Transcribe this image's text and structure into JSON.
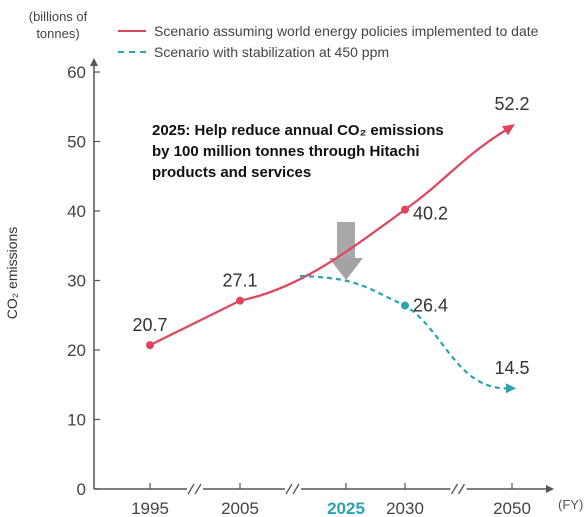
{
  "chart_data": {
    "type": "line",
    "unit_label": "(billions of\ntonnes)",
    "ylabel": "CO₂ emissions",
    "xlabel": "(FY)",
    "ylim": [
      0,
      60
    ],
    "yticks": [
      0,
      10,
      20,
      30,
      40,
      50,
      60
    ],
    "x_ticks": [
      {
        "year": 1995,
        "label": "1995",
        "highlight": false
      },
      {
        "year": 2005,
        "label": "2005",
        "highlight": false
      },
      {
        "year": 2025,
        "label": "2025",
        "highlight": true
      },
      {
        "year": 2030,
        "label": "2030",
        "highlight": false
      },
      {
        "year": 2050,
        "label": "2050",
        "highlight": false
      }
    ],
    "series": [
      {
        "name": "Scenario assuming world energy policies implemented to date",
        "style": "solid",
        "color": "#e0445e",
        "points": [
          {
            "year": 1995,
            "value": 20.7,
            "label": "20.7"
          },
          {
            "year": 2005,
            "value": 27.1,
            "label": "27.1"
          },
          {
            "year": 2030,
            "value": 40.2,
            "label": "40.2"
          },
          {
            "year": 2050,
            "value": 52.2,
            "label": "52.2"
          }
        ]
      },
      {
        "name": "Scenario with stabilization at 450 ppm",
        "style": "dashed",
        "color": "#2aa3ad",
        "points": [
          {
            "year": 2030,
            "value": 26.4,
            "label": "26.4"
          },
          {
            "year": 2050,
            "value": 14.5,
            "label": "14.5"
          }
        ]
      }
    ],
    "annotation": "2025: Help reduce annual CO₂ emissions\nby 100 million tonnes through Hitachi\nproducts and services",
    "axis_break_between": [
      [
        1995,
        2005
      ],
      [
        2005,
        2025
      ],
      [
        2030,
        2050
      ]
    ],
    "colors": {
      "highlight_tick": "#2aa3ad",
      "arrow": "#999999",
      "axis": "#555555"
    }
  }
}
